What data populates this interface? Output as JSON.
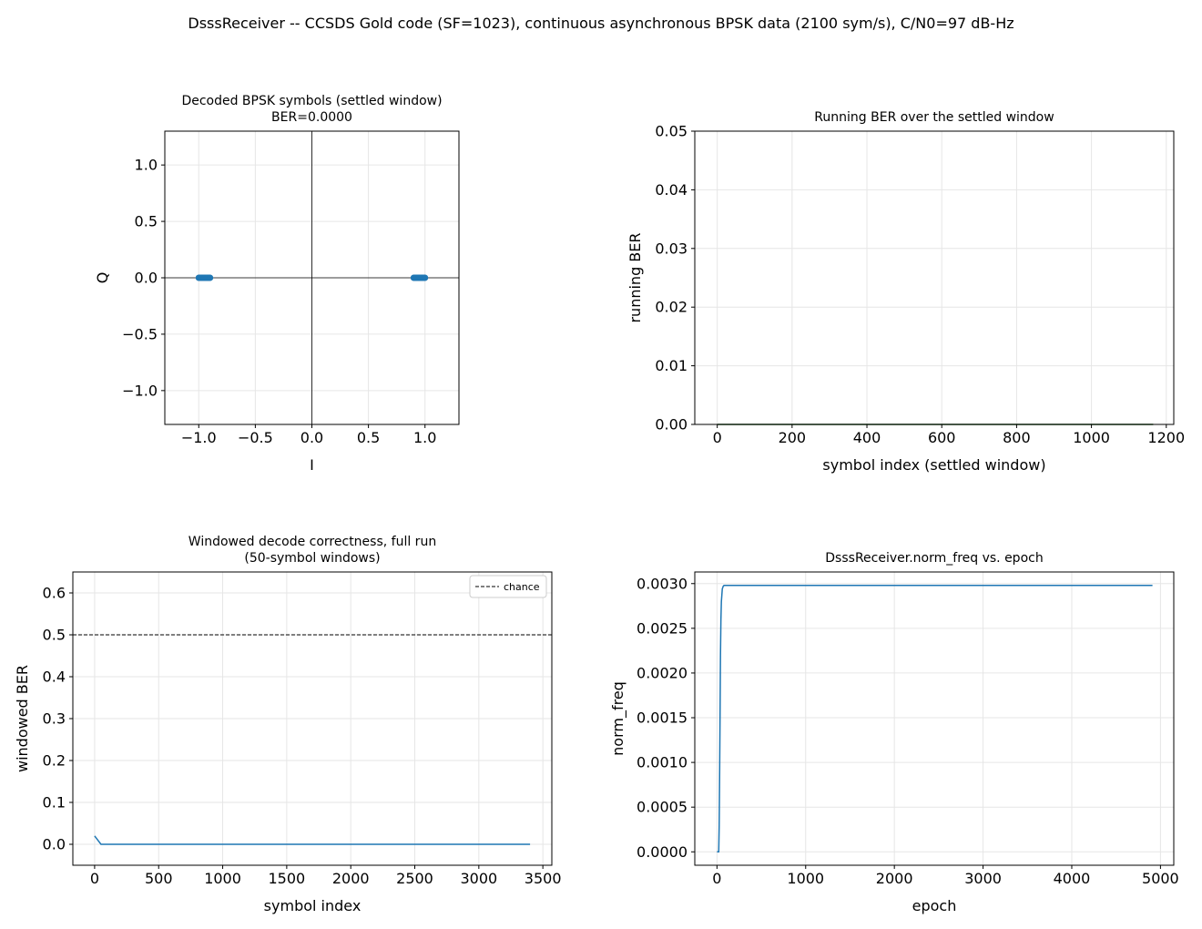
{
  "suptitle": "DsssReceiver -- CCSDS Gold code (SF=1023), continuous asynchronous BPSK data (2100 sym/s), C/N0=97 dB-Hz",
  "colors": {
    "series": "#1f77b4",
    "grid": "#e6e6e6",
    "axis": "#000000",
    "chance": "#000000"
  },
  "chart_data": [
    {
      "type": "scatter",
      "title": "Decoded BPSK symbols (settled window)",
      "subtitle": "BER=0.0000",
      "xlabel": "I",
      "ylabel": "Q",
      "xlim": [
        -1.3,
        1.3
      ],
      "ylim": [
        -1.3,
        1.3
      ],
      "xticks": [
        -1.0,
        -0.5,
        0.0,
        0.5,
        1.0
      ],
      "yticks": [
        -1.0,
        -0.5,
        0.0,
        0.5,
        1.0
      ],
      "xtick_labels": [
        "−1.0",
        "−0.5",
        "0.0",
        "0.5",
        "1.0"
      ],
      "ytick_labels": [
        "−1.0",
        "−0.5",
        "0.0",
        "0.5",
        "1.0"
      ],
      "grid": true,
      "clusters": [
        {
          "name": "symbol -1",
          "x_range": [
            -1.0,
            -0.9
          ],
          "y": 0.0
        },
        {
          "name": "symbol +1",
          "x_range": [
            0.9,
            1.0
          ],
          "y": 0.0
        }
      ]
    },
    {
      "type": "line",
      "title": "Running BER over the settled window",
      "xlabel": "symbol index (settled window)",
      "ylabel": "running BER",
      "xlim": [
        -60,
        1220
      ],
      "ylim": [
        0.0,
        0.05
      ],
      "xticks": [
        0,
        200,
        400,
        600,
        800,
        1000,
        1200
      ],
      "yticks": [
        0.0,
        0.01,
        0.02,
        0.03,
        0.04,
        0.05
      ],
      "xtick_labels": [
        "0",
        "200",
        "400",
        "600",
        "800",
        "1000",
        "1200"
      ],
      "ytick_labels": [
        "0.00",
        "0.01",
        "0.02",
        "0.03",
        "0.04",
        "0.05"
      ],
      "grid": true,
      "series": [
        {
          "x": [
            0,
            1165
          ],
          "y": [
            0.0,
            0.0
          ],
          "color": "#1a5c1a"
        }
      ]
    },
    {
      "type": "line",
      "title": "Windowed decode correctness, full run",
      "subtitle": "(50-symbol windows)",
      "xlabel": "symbol index",
      "ylabel": "windowed BER",
      "xlim": [
        -170,
        3570
      ],
      "ylim": [
        -0.05,
        0.65
      ],
      "xticks": [
        0,
        500,
        1000,
        1500,
        2000,
        2500,
        3000,
        3500
      ],
      "yticks": [
        0.0,
        0.1,
        0.2,
        0.3,
        0.4,
        0.5,
        0.6
      ],
      "xtick_labels": [
        "0",
        "500",
        "1000",
        "1500",
        "2000",
        "2500",
        "3000",
        "3500"
      ],
      "ytick_labels": [
        "0.0",
        "0.1",
        "0.2",
        "0.3",
        "0.4",
        "0.5",
        "0.6"
      ],
      "grid": true,
      "legend": {
        "placement": "upper right",
        "entries": [
          "chance"
        ]
      },
      "series": [
        {
          "x": [
            0,
            50,
            3400
          ],
          "y": [
            0.02,
            0.0,
            0.0
          ],
          "color": "#1f77b4"
        }
      ],
      "hlines": [
        {
          "name": "chance",
          "y": 0.5,
          "style": "dashed"
        }
      ]
    },
    {
      "type": "line",
      "title": "DsssReceiver.norm_freq vs. epoch",
      "xlabel": "epoch",
      "ylabel": "norm_freq",
      "xlim": [
        -250,
        5150
      ],
      "ylim": [
        -0.00015,
        0.00313
      ],
      "xticks": [
        0,
        1000,
        2000,
        3000,
        4000,
        5000
      ],
      "yticks": [
        0.0,
        0.0005,
        0.001,
        0.0015,
        0.002,
        0.0025,
        0.003
      ],
      "xtick_labels": [
        "0",
        "1000",
        "2000",
        "3000",
        "4000",
        "5000"
      ],
      "ytick_labels": [
        "0.0000",
        "0.0005",
        "0.0010",
        "0.0015",
        "0.0020",
        "0.0025",
        "0.0030"
      ],
      "grid": true,
      "series": [
        {
          "x": [
            0,
            20,
            25,
            30,
            35,
            40,
            45,
            50,
            60,
            70,
            80,
            100,
            150,
            500,
            1000,
            2000,
            3000,
            4000,
            4910
          ],
          "y": [
            0.0,
            0.0,
            0.0003,
            0.0009,
            0.0016,
            0.0022,
            0.0026,
            0.0028,
            0.00294,
            0.00297,
            0.00298,
            0.00298,
            0.00298,
            0.00298,
            0.00298,
            0.00298,
            0.00298,
            0.00298,
            0.00298
          ],
          "color": "#1f77b4"
        }
      ]
    }
  ]
}
